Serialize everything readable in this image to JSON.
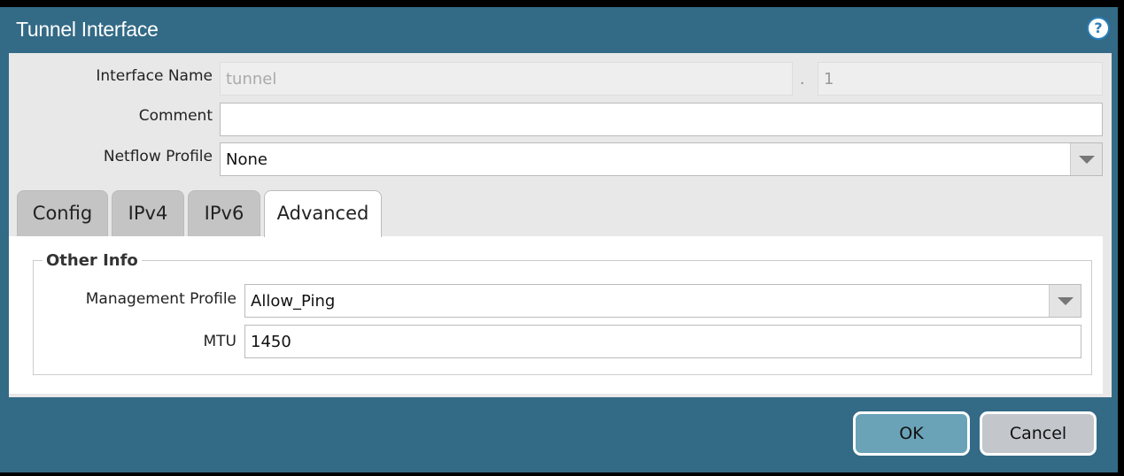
{
  "dialog": {
    "title": "Tunnel Interface",
    "help_icon": "help-icon"
  },
  "fields": {
    "interface_name_label": "Interface Name",
    "interface_name_value": "tunnel",
    "separator": ".",
    "interface_suffix": "1",
    "comment_label": "Comment",
    "comment_value": "",
    "netflow_label": "Netflow Profile",
    "netflow_value": "None"
  },
  "tabs": [
    {
      "label": "Config"
    },
    {
      "label": "IPv4"
    },
    {
      "label": "IPv6"
    },
    {
      "label": "Advanced",
      "active": true
    }
  ],
  "advanced": {
    "section_title": "Other Info",
    "mgmt_label": "Management Profile",
    "mgmt_value": "Allow_Ping",
    "mtu_label": "MTU",
    "mtu_value": "1450"
  },
  "buttons": {
    "ok": "OK",
    "cancel": "Cancel"
  },
  "colors": {
    "header": "#336a86",
    "ok": "#6aa3b8",
    "cancel": "#c3c6cb"
  }
}
